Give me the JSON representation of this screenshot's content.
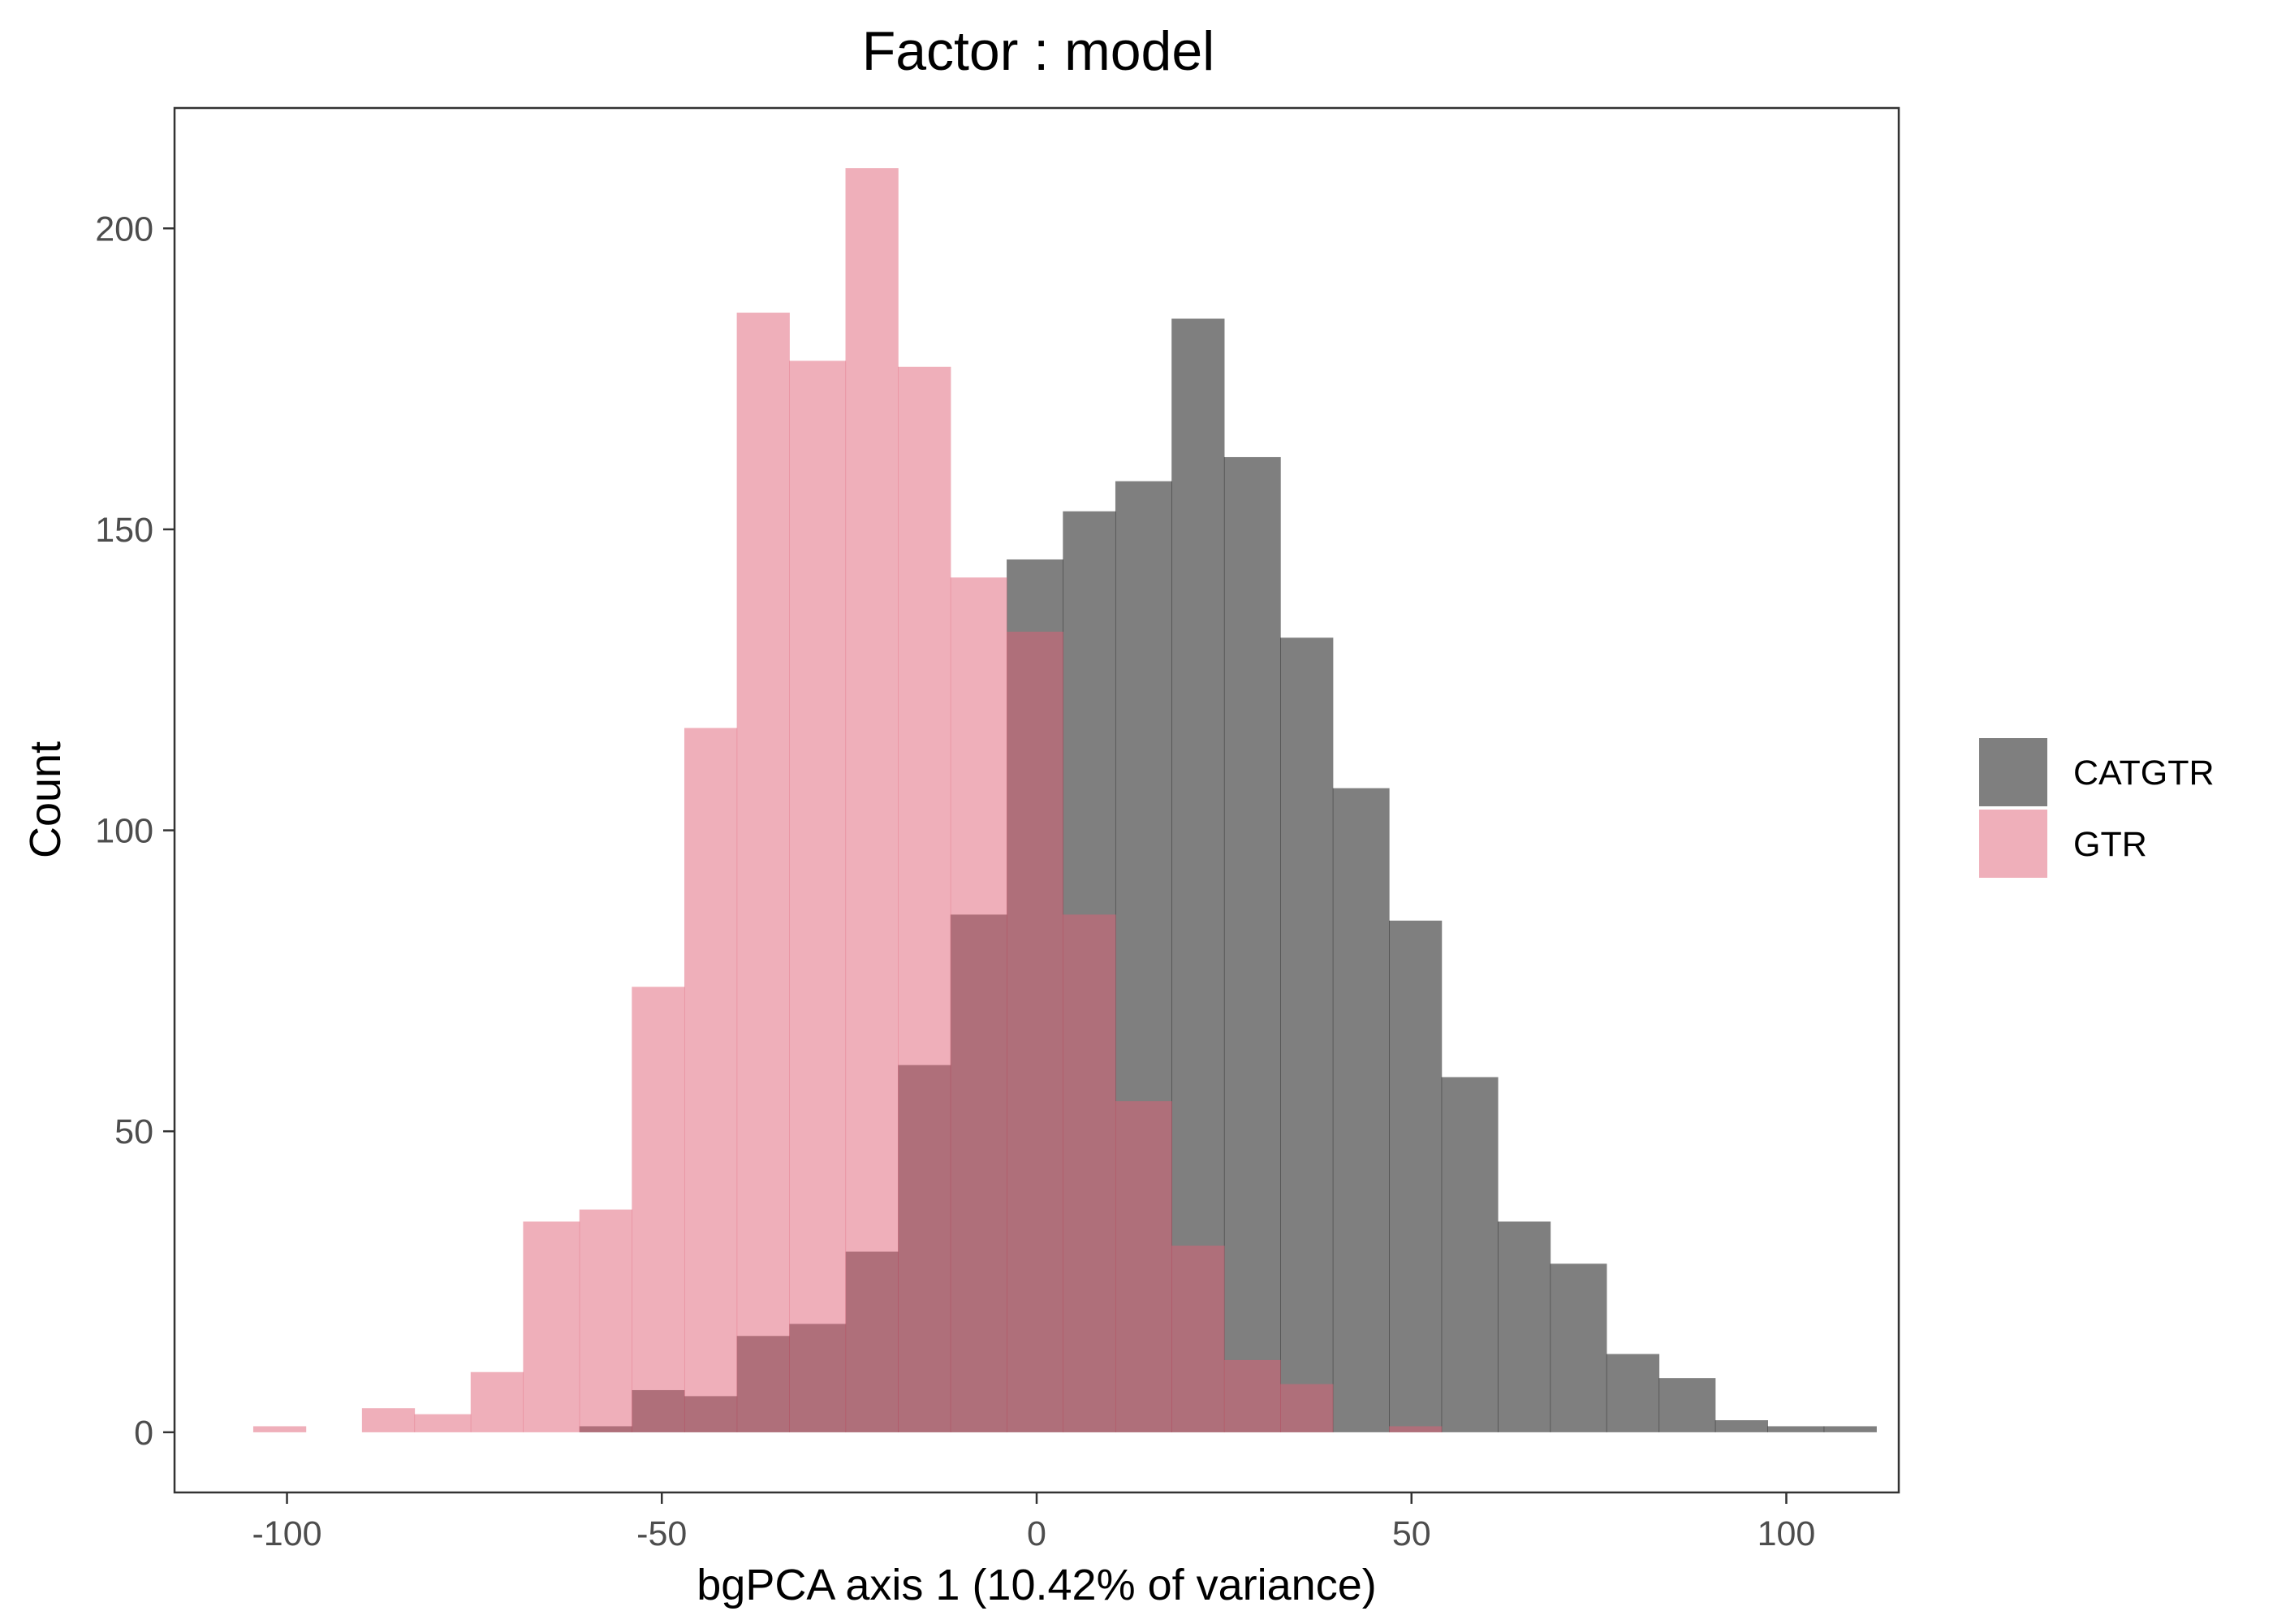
{
  "chart_data": {
    "type": "bar",
    "subtype": "overlapping-histogram",
    "title": "Factor : model",
    "xlabel": "bgPCA axis 1 (10.42% of variance)",
    "ylabel": "Count",
    "xlim": [
      -115,
      115
    ],
    "ylim": [
      -10,
      220
    ],
    "x_ticks": [
      -100,
      -50,
      0,
      50,
      100
    ],
    "x_tick_labels": [
      "-100",
      "-50",
      "0",
      "50",
      "100"
    ],
    "y_ticks": [
      0,
      50,
      100,
      150,
      200
    ],
    "y_tick_labels": [
      "0",
      "50",
      "100",
      "150",
      "200"
    ],
    "grid": false,
    "legend_position": "right",
    "overlay_opacity": 0.5,
    "series": [
      {
        "name": "CATGTR",
        "color": "#000000",
        "bins": [
          {
            "x0": -61.0,
            "x1": -54.0,
            "count": 1
          },
          {
            "x0": -54.0,
            "x1": -47.0,
            "count": 7
          },
          {
            "x0": -47.0,
            "x1": -40.0,
            "count": 6
          },
          {
            "x0": -40.0,
            "x1": -33.0,
            "count": 16
          },
          {
            "x0": -33.0,
            "x1": -25.5,
            "count": 18
          },
          {
            "x0": -25.5,
            "x1": -18.5,
            "count": 30
          },
          {
            "x0": -18.5,
            "x1": -11.5,
            "count": 61
          },
          {
            "x0": -11.5,
            "x1": -4.0,
            "count": 86
          },
          {
            "x0": -4.0,
            "x1": 3.5,
            "count": 145
          },
          {
            "x0": 3.5,
            "x1": 10.5,
            "count": 153
          },
          {
            "x0": 10.5,
            "x1": 18.0,
            "count": 158
          },
          {
            "x0": 18.0,
            "x1": 25.0,
            "count": 185
          },
          {
            "x0": 25.0,
            "x1": 32.5,
            "count": 162
          },
          {
            "x0": 32.5,
            "x1": 39.5,
            "count": 132
          },
          {
            "x0": 39.5,
            "x1": 47.0,
            "count": 107
          },
          {
            "x0": 47.0,
            "x1": 54.0,
            "count": 85
          },
          {
            "x0": 54.0,
            "x1": 61.5,
            "count": 59
          },
          {
            "x0": 61.5,
            "x1": 68.5,
            "count": 35
          },
          {
            "x0": 68.5,
            "x1": 76.0,
            "count": 28
          },
          {
            "x0": 76.0,
            "x1": 83.0,
            "count": 13
          },
          {
            "x0": 83.0,
            "x1": 90.5,
            "count": 9
          },
          {
            "x0": 90.5,
            "x1": 97.5,
            "count": 2
          },
          {
            "x0": 97.5,
            "x1": 105.0,
            "count": 1
          },
          {
            "x0": 105.0,
            "x1": 112.0,
            "count": 1
          }
        ]
      },
      {
        "name": "GTR",
        "color": "#df5f75",
        "bins": [
          {
            "x0": -104.5,
            "x1": -97.5,
            "count": 1
          },
          {
            "x0": -90.0,
            "x1": -83.0,
            "count": 4
          },
          {
            "x0": -83.0,
            "x1": -75.5,
            "count": 3
          },
          {
            "x0": -75.5,
            "x1": -68.5,
            "count": 10
          },
          {
            "x0": -68.5,
            "x1": -61.0,
            "count": 35
          },
          {
            "x0": -61.0,
            "x1": -54.0,
            "count": 37
          },
          {
            "x0": -54.0,
            "x1": -47.0,
            "count": 74
          },
          {
            "x0": -47.0,
            "x1": -40.0,
            "count": 117
          },
          {
            "x0": -40.0,
            "x1": -33.0,
            "count": 186
          },
          {
            "x0": -33.0,
            "x1": -25.5,
            "count": 178
          },
          {
            "x0": -25.5,
            "x1": -18.5,
            "count": 210
          },
          {
            "x0": -18.5,
            "x1": -11.5,
            "count": 177
          },
          {
            "x0": -11.5,
            "x1": -4.0,
            "count": 142
          },
          {
            "x0": -4.0,
            "x1": 3.5,
            "count": 133
          },
          {
            "x0": 3.5,
            "x1": 10.5,
            "count": 86
          },
          {
            "x0": 10.5,
            "x1": 18.0,
            "count": 55
          },
          {
            "x0": 18.0,
            "x1": 25.0,
            "count": 31
          },
          {
            "x0": 25.0,
            "x1": 32.5,
            "count": 12
          },
          {
            "x0": 32.5,
            "x1": 39.5,
            "count": 8
          },
          {
            "x0": 47.0,
            "x1": 54.0,
            "count": 1
          }
        ]
      }
    ]
  }
}
